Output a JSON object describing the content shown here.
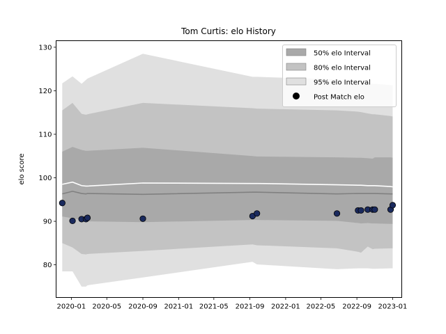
{
  "chart_data": {
    "type": "line",
    "title": "Tom Curtis: elo History",
    "xlabel": "",
    "ylabel": "elo score",
    "x_ticks": [
      "2020-01",
      "2020-05",
      "2020-09",
      "2021-01",
      "2021-05",
      "2021-09",
      "2022-01",
      "2022-05",
      "2022-09",
      "2023-01"
    ],
    "y_ticks": [
      "80",
      "90",
      "100",
      "110",
      "120",
      "130"
    ],
    "ylim": [
      72.5,
      131.5
    ],
    "xlim": [
      "2019-11-10",
      "2023-02-01"
    ],
    "legend_position": "top-right",
    "grid": false,
    "x": [
      "2019-12-01",
      "2020-01-05",
      "2020-02-05",
      "2020-02-20",
      "2020-02-25",
      "2020-09-01",
      "2021-09-10",
      "2021-09-25",
      "2022-06-25",
      "2022-09-05",
      "2022-09-15",
      "2022-10-08",
      "2022-10-25",
      "2022-11-01",
      "2022-12-25",
      "2023-01-01"
    ],
    "series": [
      {
        "name": "50% elo Interval",
        "lower": [
          91.1,
          90.7,
          90.3,
          90.1,
          90.0,
          89.8,
          90.3,
          90.3,
          90.1,
          89.6,
          89.5,
          89.6,
          89.5,
          89.5,
          89.4,
          89.4
        ],
        "upper": [
          106.0,
          107.1,
          106.4,
          106.2,
          106.2,
          106.9,
          105.0,
          104.9,
          104.7,
          104.6,
          104.6,
          104.5,
          104.4,
          104.7,
          104.7,
          104.6
        ],
        "color": "#a9a9a9"
      },
      {
        "name": "80% elo Interval",
        "lower": [
          85.0,
          84.0,
          82.5,
          82.4,
          82.5,
          83.2,
          84.7,
          84.5,
          83.8,
          83.0,
          82.8,
          84.2,
          83.6,
          83.7,
          83.8,
          83.8
        ],
        "upper": [
          115.5,
          117.2,
          114.7,
          114.5,
          114.6,
          117.2,
          116.0,
          115.9,
          115.5,
          115.2,
          115.1,
          114.8,
          114.6,
          114.6,
          114.2,
          114.1
        ],
        "color": "#c3c3c3"
      },
      {
        "name": "95% elo Interval",
        "lower": [
          78.5,
          78.5,
          75.0,
          75.0,
          75.3,
          77.1,
          80.7,
          80.1,
          79.0,
          79.2,
          79.2,
          79.2,
          79.1,
          79.1,
          79.2,
          79.2
        ],
        "upper": [
          121.7,
          123.3,
          121.6,
          122.5,
          122.8,
          128.5,
          123.2,
          123.2,
          122.6,
          122.0,
          122.0,
          121.7,
          121.6,
          121.6,
          121.3,
          121.2
        ],
        "color": "#e0e0e0"
      },
      {
        "name": "Post Match elo",
        "type": "scatter",
        "values": [
          94.2,
          90.1,
          90.5,
          90.5,
          90.8,
          90.6,
          91.2,
          91.8,
          91.8,
          92.5,
          92.5,
          92.7,
          92.7,
          92.7,
          92.7,
          93.7
        ],
        "color": "#1a2a5e"
      }
    ],
    "lines": [
      {
        "values": [
          98.5,
          99.0,
          98.2,
          98.1,
          98.1,
          98.8,
          98.7,
          98.7,
          98.4,
          98.3,
          98.3,
          98.2,
          98.2,
          98.2,
          98.0,
          97.9
        ],
        "color": "#ffffff"
      },
      {
        "values": [
          96.3,
          96.9,
          96.4,
          96.3,
          96.4,
          96.2,
          96.7,
          96.7,
          96.3,
          96.4,
          96.4,
          96.4,
          96.4,
          96.4,
          96.3,
          96.3
        ],
        "color": "#808080"
      }
    ]
  }
}
